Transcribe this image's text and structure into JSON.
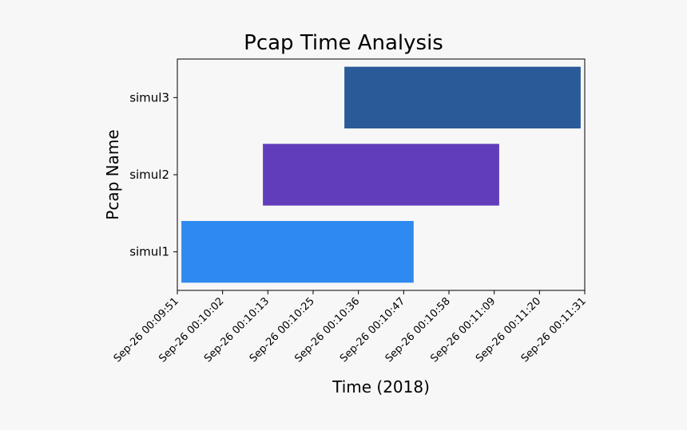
{
  "chart_data": {
    "type": "bar",
    "orientation": "horizontal",
    "title": "Pcap Time Analysis",
    "xlabel": "Time (2018)",
    "ylabel": "Pcap Name",
    "categories": [
      "simul1",
      "simul2",
      "simul3"
    ],
    "x_range": [
      "Sep-26 00:09:51",
      "Sep-26 00:11:31"
    ],
    "x_tick_labels": [
      "Sep-26  00:09:51",
      "Sep-26  00:10:02",
      "Sep-26  00:10:13",
      "Sep-26  00:10:25",
      "Sep-26  00:10:36",
      "Sep-26  00:10:47",
      "Sep-26  00:10:58",
      "Sep-26  00:11:09",
      "Sep-26  00:11:20",
      "Sep-26  00:11:31"
    ],
    "bars": [
      {
        "category": "simul1",
        "start": "Sep-26 00:09:52",
        "end": "Sep-26 00:10:49",
        "color": "#2e89f0"
      },
      {
        "category": "simul2",
        "start": "Sep-26 00:10:12",
        "end": "Sep-26 00:11:10",
        "color": "#623dbb"
      },
      {
        "category": "simul3",
        "start": "Sep-26 00:10:32",
        "end": "Sep-26 00:11:30",
        "color": "#2b5a99"
      }
    ],
    "grid": false,
    "legend": "none"
  }
}
